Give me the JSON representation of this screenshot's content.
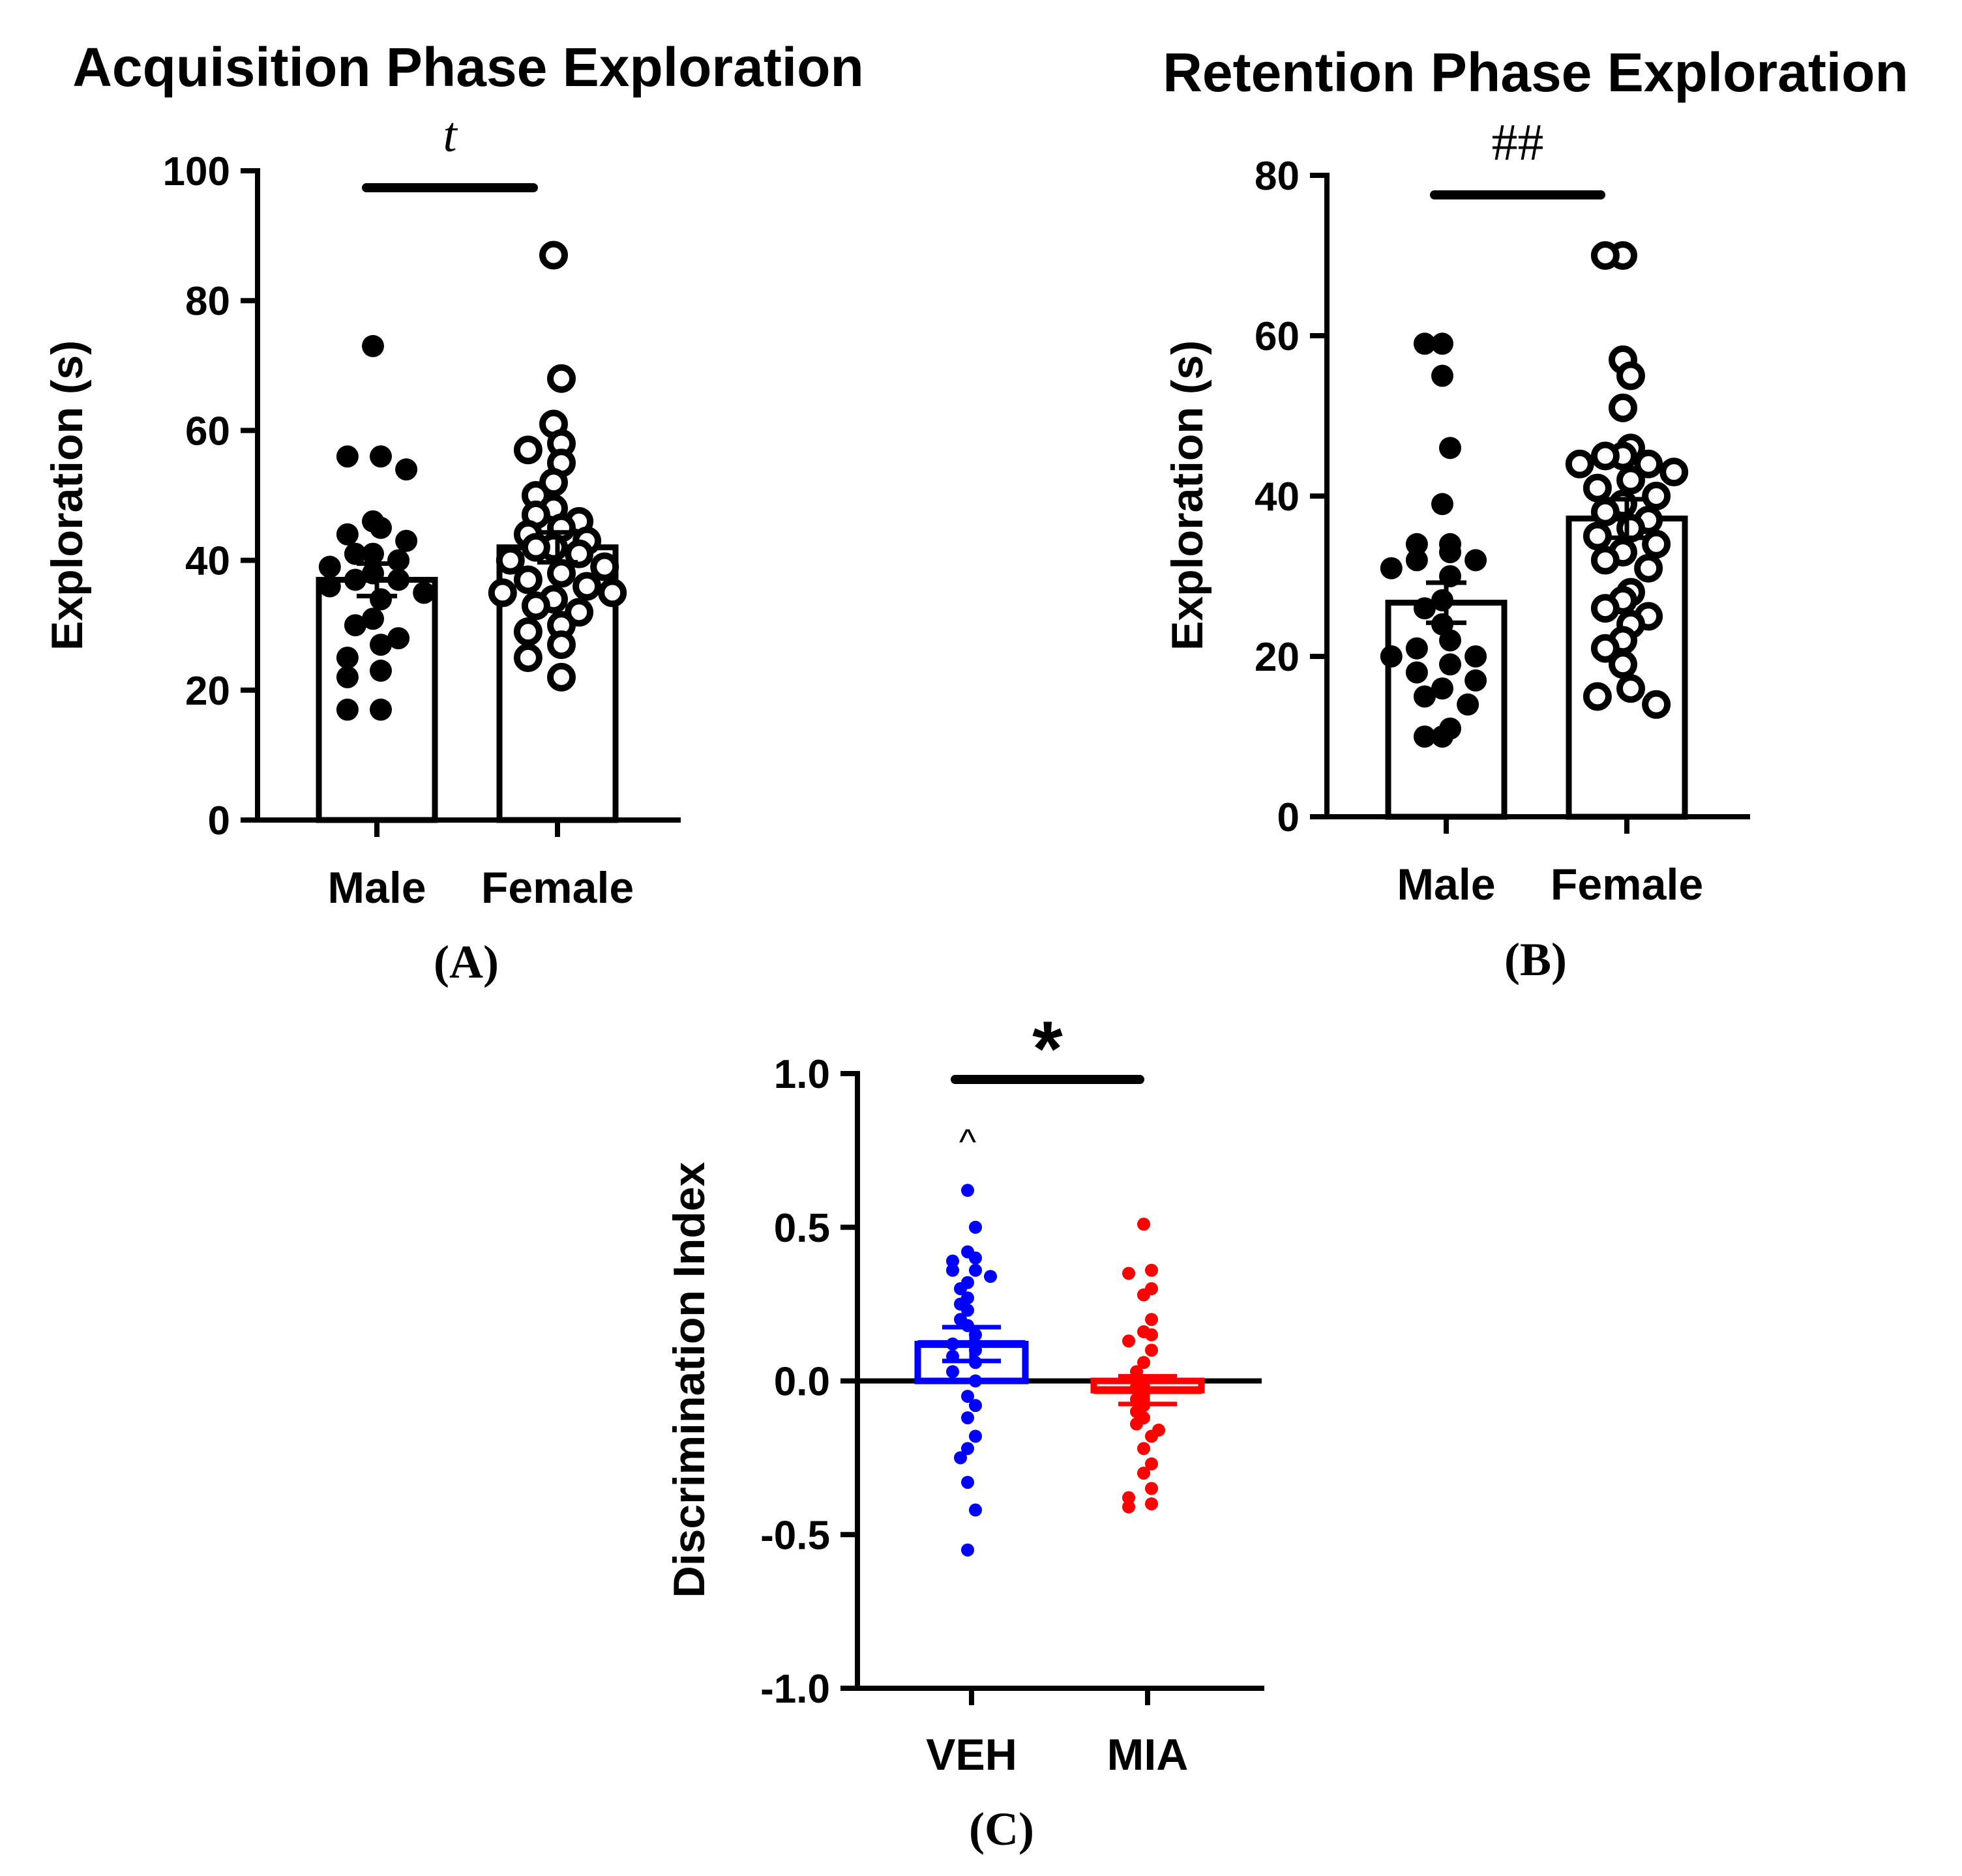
{
  "chart_data": [
    {
      "panel_label": "(A)",
      "type": "bar",
      "title": "Acquisition Phase Exploration",
      "ylabel": "Exploration (s)",
      "xlabel": "",
      "ylim": [
        0,
        100
      ],
      "yticks": [
        0,
        20,
        40,
        60,
        80,
        100
      ],
      "tick_labels": [
        "0",
        "20",
        "40",
        "60",
        "80",
        "100"
      ],
      "categories": [
        "Male",
        "Female"
      ],
      "values": [
        37,
        42
      ],
      "sem": [
        2.5,
        2.3
      ],
      "marker_style": [
        "filled",
        "open"
      ],
      "significance": "t",
      "points": [
        [
          73,
          56,
          56,
          54,
          46,
          45,
          44,
          43,
          41,
          41,
          40,
          39,
          38,
          37,
          37,
          36,
          35,
          34,
          31,
          30,
          28,
          27,
          25,
          23,
          22,
          17,
          17
        ],
        [
          87,
          68,
          61,
          58,
          57,
          55,
          52,
          50,
          48,
          47,
          46,
          45,
          44,
          43,
          42,
          42,
          41,
          40,
          39,
          38,
          37,
          36,
          35,
          35,
          34,
          33,
          32,
          30,
          29,
          27,
          25,
          22
        ]
      ]
    },
    {
      "panel_label": "(B)",
      "type": "bar",
      "title": "Retention Phase Exploration",
      "ylabel": "Exploration (s)",
      "xlabel": "",
      "ylim": [
        0,
        80
      ],
      "yticks": [
        0,
        20,
        40,
        60,
        80
      ],
      "tick_labels": [
        "0",
        "20",
        "40",
        "60",
        "80"
      ],
      "categories": [
        "Male",
        "Female"
      ],
      "values": [
        26.7,
        37.2
      ],
      "sem": [
        2.5,
        2.4
      ],
      "marker_style": [
        "filled",
        "open"
      ],
      "significance": "##",
      "points": [
        [
          59,
          59,
          55,
          46,
          39,
          34,
          34,
          33,
          32,
          32,
          31,
          30,
          27,
          26,
          24,
          22,
          21,
          20,
          20,
          19,
          18,
          17,
          16,
          15,
          14,
          11,
          10,
          10
        ],
        [
          70,
          70,
          57,
          55,
          51,
          46,
          45,
          45,
          44,
          44,
          43,
          42,
          41,
          40,
          39,
          38,
          37,
          36,
          35,
          34,
          33,
          32,
          31,
          28,
          27,
          26,
          25,
          24,
          22,
          21,
          19,
          16,
          15,
          14
        ]
      ]
    },
    {
      "panel_label": "(C)",
      "type": "bar",
      "title": "",
      "ylabel": "Discrimination Index",
      "xlabel": "",
      "ylim": [
        -1.0,
        1.0
      ],
      "yticks": [
        -1.0,
        -0.5,
        0.0,
        0.5,
        1.0
      ],
      "tick_labels": [
        "-1.0",
        "-0.5",
        "0.0",
        "0.5",
        "1.0"
      ],
      "categories": [
        "VEH",
        "MIA"
      ],
      "values": [
        0.12,
        -0.03
      ],
      "sem": [
        0.055,
        0.045
      ],
      "colors": [
        "#0000ff",
        "#ff0000"
      ],
      "marker_style": [
        "filled",
        "filled"
      ],
      "significance": "*",
      "annotation": "^",
      "points": [
        [
          0.62,
          0.5,
          0.42,
          0.4,
          0.39,
          0.36,
          0.36,
          0.34,
          0.32,
          0.3,
          0.27,
          0.25,
          0.23,
          0.2,
          0.18,
          0.15,
          0.12,
          0.1,
          0.08,
          0.06,
          0.03,
          0.0,
          -0.05,
          -0.08,
          -0.12,
          -0.18,
          -0.22,
          -0.25,
          -0.33,
          -0.42,
          -0.55
        ],
        [
          0.51,
          0.36,
          0.35,
          0.3,
          0.28,
          0.2,
          0.16,
          0.15,
          0.13,
          0.1,
          0.06,
          0.03,
          0.0,
          -0.02,
          -0.04,
          -0.06,
          -0.08,
          -0.1,
          -0.12,
          -0.14,
          -0.16,
          -0.18,
          -0.22,
          -0.27,
          -0.3,
          -0.35,
          -0.38,
          -0.4,
          -0.41
        ]
      ]
    }
  ]
}
